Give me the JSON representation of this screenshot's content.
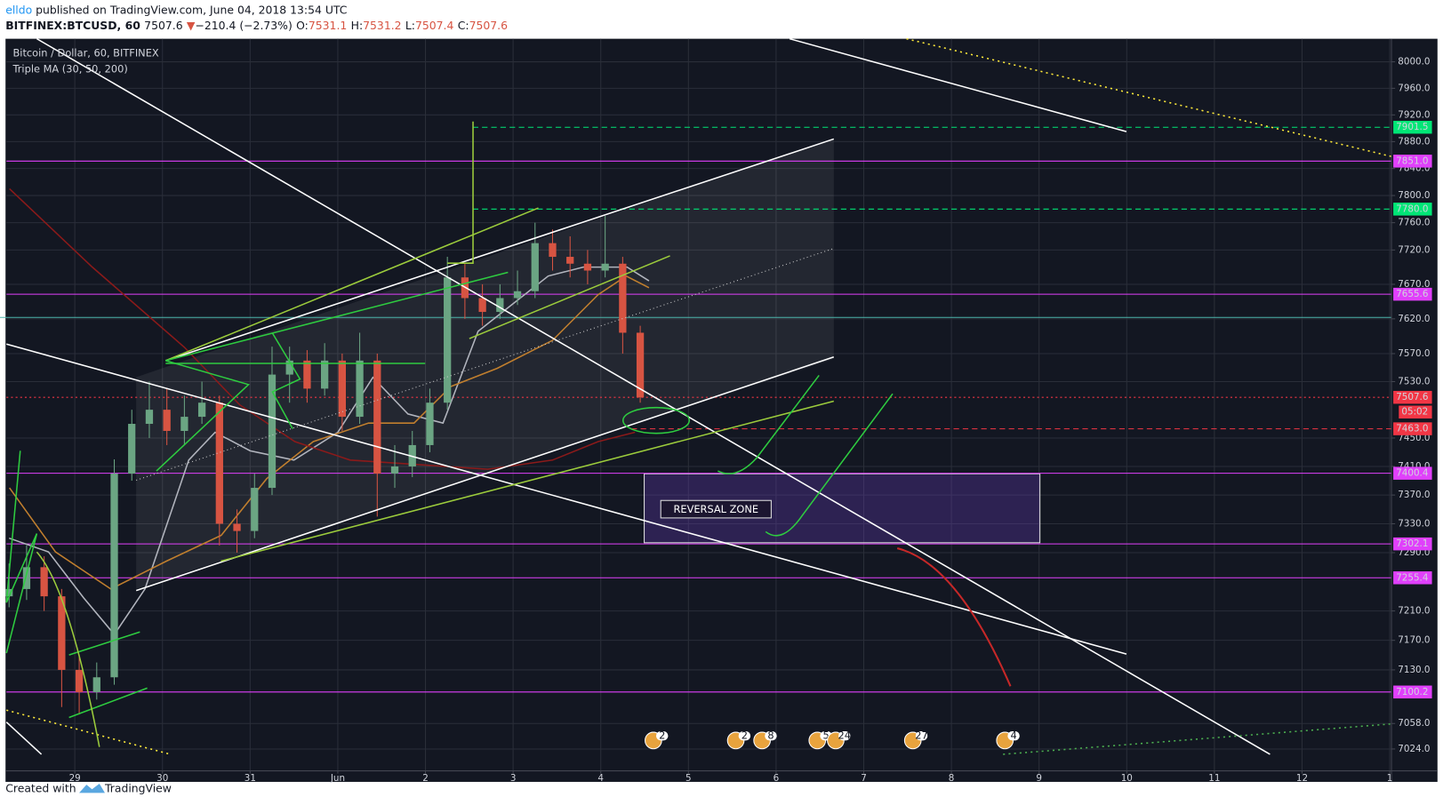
{
  "header": {
    "author": "elldo",
    "published": "published on TradingView.com, June 04, 2018 13:54 UTC",
    "symbol": "BITFINEX:BTCUSD, 60",
    "last": "7507.6",
    "arrow": "▼",
    "change": "−210.4 (−2.73%)",
    "o_label": "O:",
    "o": "7531.1",
    "h_label": "H:",
    "h": "7531.2",
    "l_label": "L:",
    "l": "7507.4",
    "c_label": "C:",
    "c": "7507.6"
  },
  "chart_data": {
    "type": "candlestick",
    "legend_title": "Bitcoin / Dollar, 60, BITFINEX",
    "indicator": "Triple MA (30, 50, 200)",
    "log_scale": true,
    "grid": true,
    "up_color": "#6ba583",
    "down_color": "#d75442",
    "xlim": [
      -0.78,
      15.02
    ],
    "xticks": [
      {
        "value": 0,
        "label": "29"
      },
      {
        "value": 1,
        "label": "30"
      },
      {
        "value": 2,
        "label": "31"
      },
      {
        "value": 3,
        "label": "Jun"
      },
      {
        "value": 4,
        "label": "2"
      },
      {
        "value": 5,
        "label": "3"
      },
      {
        "value": 6,
        "label": "4"
      },
      {
        "value": 7,
        "label": "5"
      },
      {
        "value": 8,
        "label": "6"
      },
      {
        "value": 9,
        "label": "7"
      },
      {
        "value": 10,
        "label": "8"
      },
      {
        "value": 11,
        "label": "9"
      },
      {
        "value": 12,
        "label": "10"
      },
      {
        "value": 13,
        "label": "11"
      },
      {
        "value": 14,
        "label": "12"
      },
      {
        "value": 15,
        "label": "1"
      }
    ],
    "ylim": [
      6995,
      8035
    ],
    "yticks": [
      {
        "value": 8000,
        "label": "8000.0"
      },
      {
        "value": 7960,
        "label": "7960.0"
      },
      {
        "value": 7920,
        "label": "7920.0"
      },
      {
        "value": 7880,
        "label": "7880.0"
      },
      {
        "value": 7840,
        "label": "7840.0"
      },
      {
        "value": 7800,
        "label": "7800.0"
      },
      {
        "value": 7760,
        "label": "7760.0"
      },
      {
        "value": 7720,
        "label": "7720.0"
      },
      {
        "value": 7670,
        "label": "7670.0"
      },
      {
        "value": 7620,
        "label": "7620.0"
      },
      {
        "value": 7570,
        "label": "7570.0"
      },
      {
        "value": 7530,
        "label": "7530.0"
      },
      {
        "value": 7450,
        "label": "7450.0"
      },
      {
        "value": 7410,
        "label": "7410.0"
      },
      {
        "value": 7370,
        "label": "7370.0"
      },
      {
        "value": 7330,
        "label": "7330.0"
      },
      {
        "value": 7290,
        "label": "7290.0"
      },
      {
        "value": 7210,
        "label": "7210.0"
      },
      {
        "value": 7170,
        "label": "7170.0"
      },
      {
        "value": 7130,
        "label": "7130.0"
      },
      {
        "value": 7058,
        "label": "7058.0"
      },
      {
        "value": 7024,
        "label": "7024.0"
      }
    ],
    "candles": [
      {
        "x": -0.75,
        "open": 7230,
        "high": 7275,
        "low": 7215,
        "close": 7240
      },
      {
        "x": -0.55,
        "open": 7240,
        "high": 7300,
        "low": 7225,
        "close": 7270
      },
      {
        "x": -0.35,
        "open": 7270,
        "high": 7285,
        "low": 7210,
        "close": 7230
      },
      {
        "x": -0.15,
        "open": 7230,
        "high": 7240,
        "low": 7080,
        "close": 7130
      },
      {
        "x": 0.05,
        "open": 7130,
        "high": 7150,
        "low": 7070,
        "close": 7100
      },
      {
        "x": 0.25,
        "open": 7100,
        "high": 7140,
        "low": 7090,
        "close": 7120
      },
      {
        "x": 0.45,
        "open": 7120,
        "high": 7420,
        "low": 7110,
        "close": 7400
      },
      {
        "x": 0.65,
        "open": 7400,
        "high": 7490,
        "low": 7390,
        "close": 7470
      },
      {
        "x": 0.85,
        "open": 7470,
        "high": 7530,
        "low": 7450,
        "close": 7490
      },
      {
        "x": 1.05,
        "open": 7490,
        "high": 7520,
        "low": 7440,
        "close": 7460
      },
      {
        "x": 1.25,
        "open": 7460,
        "high": 7510,
        "low": 7440,
        "close": 7480
      },
      {
        "x": 1.45,
        "open": 7480,
        "high": 7530,
        "low": 7470,
        "close": 7500
      },
      {
        "x": 1.65,
        "open": 7500,
        "high": 7510,
        "low": 7300,
        "close": 7330
      },
      {
        "x": 1.85,
        "open": 7330,
        "high": 7350,
        "low": 7290,
        "close": 7320
      },
      {
        "x": 2.05,
        "open": 7320,
        "high": 7400,
        "low": 7310,
        "close": 7380
      },
      {
        "x": 2.25,
        "open": 7380,
        "high": 7580,
        "low": 7370,
        "close": 7540
      },
      {
        "x": 2.45,
        "open": 7540,
        "high": 7580,
        "low": 7500,
        "close": 7560
      },
      {
        "x": 2.65,
        "open": 7560,
        "high": 7575,
        "low": 7500,
        "close": 7520
      },
      {
        "x": 2.85,
        "open": 7520,
        "high": 7585,
        "low": 7510,
        "close": 7560
      },
      {
        "x": 3.05,
        "open": 7560,
        "high": 7570,
        "low": 7460,
        "close": 7480
      },
      {
        "x": 3.25,
        "open": 7480,
        "high": 7600,
        "low": 7470,
        "close": 7560
      },
      {
        "x": 3.45,
        "open": 7560,
        "high": 7570,
        "low": 7340,
        "close": 7400
      },
      {
        "x": 3.65,
        "open": 7400,
        "high": 7440,
        "low": 7380,
        "close": 7410
      },
      {
        "x": 3.85,
        "open": 7410,
        "high": 7460,
        "low": 7395,
        "close": 7440
      },
      {
        "x": 4.05,
        "open": 7440,
        "high": 7520,
        "low": 7430,
        "close": 7500
      },
      {
        "x": 4.25,
        "open": 7500,
        "high": 7710,
        "low": 7490,
        "close": 7680
      },
      {
        "x": 4.45,
        "open": 7680,
        "high": 7700,
        "low": 7620,
        "close": 7650
      },
      {
        "x": 4.65,
        "open": 7650,
        "high": 7670,
        "low": 7610,
        "close": 7630
      },
      {
        "x": 4.85,
        "open": 7630,
        "high": 7670,
        "low": 7620,
        "close": 7650
      },
      {
        "x": 5.05,
        "open": 7650,
        "high": 7690,
        "low": 7640,
        "close": 7660
      },
      {
        "x": 5.25,
        "open": 7660,
        "high": 7760,
        "low": 7650,
        "close": 7730
      },
      {
        "x": 5.45,
        "open": 7730,
        "high": 7750,
        "low": 7690,
        "close": 7710
      },
      {
        "x": 5.65,
        "open": 7710,
        "high": 7740,
        "low": 7680,
        "close": 7700
      },
      {
        "x": 5.85,
        "open": 7700,
        "high": 7720,
        "low": 7670,
        "close": 7690
      },
      {
        "x": 6.05,
        "open": 7690,
        "high": 7770,
        "low": 7680,
        "close": 7700
      },
      {
        "x": 6.25,
        "open": 7700,
        "high": 7710,
        "low": 7570,
        "close": 7600
      },
      {
        "x": 6.45,
        "open": 7600,
        "high": 7610,
        "low": 7500,
        "close": 7507.6
      }
    ],
    "moving_averages": [
      {
        "color": "#b2b5be",
        "x": [
          -0.75,
          -0.3,
          0.1,
          0.45,
          0.8,
          1.3,
          1.6,
          2.0,
          2.5,
          3.0,
          3.4,
          3.8,
          4.2,
          4.6,
          5.0,
          5.4,
          5.8,
          6.3,
          6.55
        ],
        "values": [
          7310,
          7291,
          7228,
          7178,
          7240,
          7419,
          7458,
          7432,
          7419,
          7458,
          7536,
          7484,
          7471,
          7602,
          7642,
          7682,
          7695,
          7695,
          7675
        ]
      },
      {
        "color": "#c17f2e",
        "x": [
          -0.745,
          -0.22,
          0.41,
          1.04,
          1.67,
          2.19,
          2.72,
          3.35,
          3.87,
          4.29,
          4.82,
          5.45,
          5.97,
          6.29,
          6.55
        ],
        "values": [
          7380,
          7291,
          7240,
          7278,
          7314,
          7393,
          7445,
          7471,
          7471,
          7523,
          7549,
          7589,
          7655,
          7682,
          7665
        ]
      },
      {
        "color": "#8b1a1a",
        "x": [
          -0.745,
          0.2,
          1.25,
          1.88,
          2.51,
          3.14,
          3.87,
          4.71,
          5.45,
          5.97,
          6.39
        ],
        "values": [
          7810,
          7695,
          7579,
          7497,
          7445,
          7419,
          7413,
          7406,
          7419,
          7445,
          7458
        ]
      }
    ],
    "levels": [
      {
        "value": 7901.5,
        "label": "7901.5",
        "color": "#00e676",
        "style": "dashed",
        "start": 4.54
      },
      {
        "value": 7851.0,
        "label": "7851.0",
        "color": "#e040fb",
        "style": "solid"
      },
      {
        "value": 7780.0,
        "label": "7780.0",
        "color": "#00e676",
        "style": "dashed",
        "start": 4.54
      },
      {
        "value": 7655.6,
        "label": "7655.6",
        "color": "#e040fb",
        "style": "solid"
      },
      {
        "value": 7507.6,
        "label": "7507.6",
        "color": "#f23645",
        "style": "dotted"
      },
      {
        "value": 7463.0,
        "label": "7463.0",
        "color": "#f23645",
        "style": "dashed",
        "start": 6.35
      },
      {
        "value": 7400.4,
        "label": "7400.4",
        "color": "#e040fb",
        "style": "solid"
      },
      {
        "value": 7302.1,
        "label": "7302.1",
        "color": "#e040fb",
        "style": "solid"
      },
      {
        "value": 7255.4,
        "label": "7255.4",
        "color": "#e040fb",
        "style": "solid"
      },
      {
        "value": 7100.2,
        "label": "7100.2",
        "color": "#e040fb",
        "style": "solid"
      }
    ],
    "countdown": "05:02",
    "annotation": "REVERSAL ZONE",
    "events": [
      {
        "x": 6.6,
        "label": "2"
      },
      {
        "x": 7.54,
        "label": "2"
      },
      {
        "x": 7.84,
        "label": "8"
      },
      {
        "x": 8.47,
        "label": "5"
      },
      {
        "x": 8.68,
        "label": "24"
      },
      {
        "x": 9.56,
        "label": "27"
      },
      {
        "x": 10.61,
        "label": "4"
      }
    ]
  },
  "footer": {
    "created": "Created with",
    "brand": "TradingView"
  }
}
